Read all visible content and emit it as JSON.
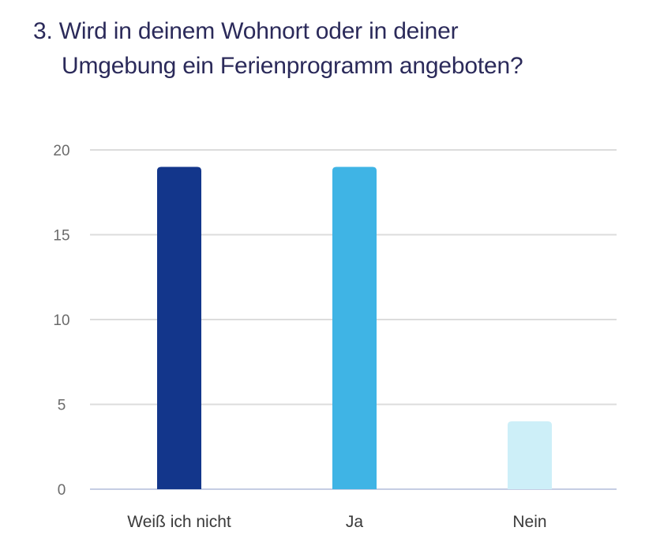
{
  "question": {
    "line1": "3. Wird in deinem Wohnort oder in deiner",
    "line2": "Umgebung ein Ferienprogramm angeboten?"
  },
  "chart_data": {
    "type": "bar",
    "title": "3. Wird in deinem Wohnort oder in deiner Umgebung ein Ferienprogramm angeboten?",
    "categories": [
      "Weiß ich nicht",
      "Ja",
      "Nein"
    ],
    "values": [
      19,
      19,
      4
    ],
    "colors": [
      "#13368b",
      "#3fb4e5",
      "#cdeff8"
    ],
    "xlabel": "",
    "ylabel": "",
    "ylim": [
      0,
      20
    ],
    "yticks": [
      0,
      5,
      10,
      15,
      20
    ],
    "grid": true,
    "legend": "none",
    "gridColor": "#dcdcdc",
    "baselineColor": "#c5cde3"
  }
}
